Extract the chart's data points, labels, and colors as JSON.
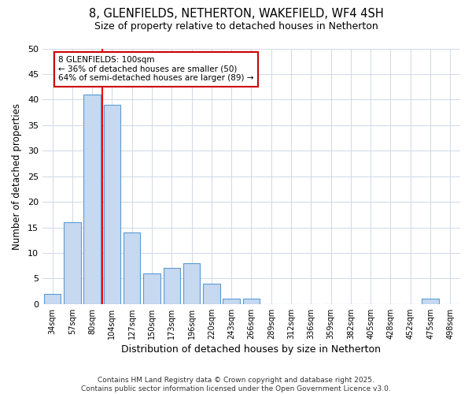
{
  "title_line1": "8, GLENFIELDS, NETHERTON, WAKEFIELD, WF4 4SH",
  "title_line2": "Size of property relative to detached houses in Netherton",
  "xlabel": "Distribution of detached houses by size in Netherton",
  "ylabel": "Number of detached properties",
  "categories": [
    "34sqm",
    "57sqm",
    "80sqm",
    "104sqm",
    "127sqm",
    "150sqm",
    "173sqm",
    "196sqm",
    "220sqm",
    "243sqm",
    "266sqm",
    "289sqm",
    "312sqm",
    "336sqm",
    "359sqm",
    "382sqm",
    "405sqm",
    "428sqm",
    "452sqm",
    "475sqm",
    "498sqm"
  ],
  "values": [
    2,
    16,
    41,
    39,
    14,
    6,
    7,
    8,
    4,
    1,
    1,
    0,
    0,
    0,
    0,
    0,
    0,
    0,
    0,
    1,
    0
  ],
  "bar_color": "#c6d9f0",
  "bar_edge_color": "#5b9bd5",
  "vline_color": "#ff0000",
  "annotation_box_text": "8 GLENFIELDS: 100sqm\n← 36% of detached houses are smaller (50)\n64% of semi-detached houses are larger (89) →",
  "annotation_box_edge_color": "#cc0000",
  "ylim": [
    0,
    50
  ],
  "yticks": [
    0,
    5,
    10,
    15,
    20,
    25,
    30,
    35,
    40,
    45,
    50
  ],
  "background_color": "#ffffff",
  "grid_color": "#d0d8e8",
  "footer_text": "Contains HM Land Registry data © Crown copyright and database right 2025.\nContains public sector information licensed under the Open Government Licence v3.0."
}
